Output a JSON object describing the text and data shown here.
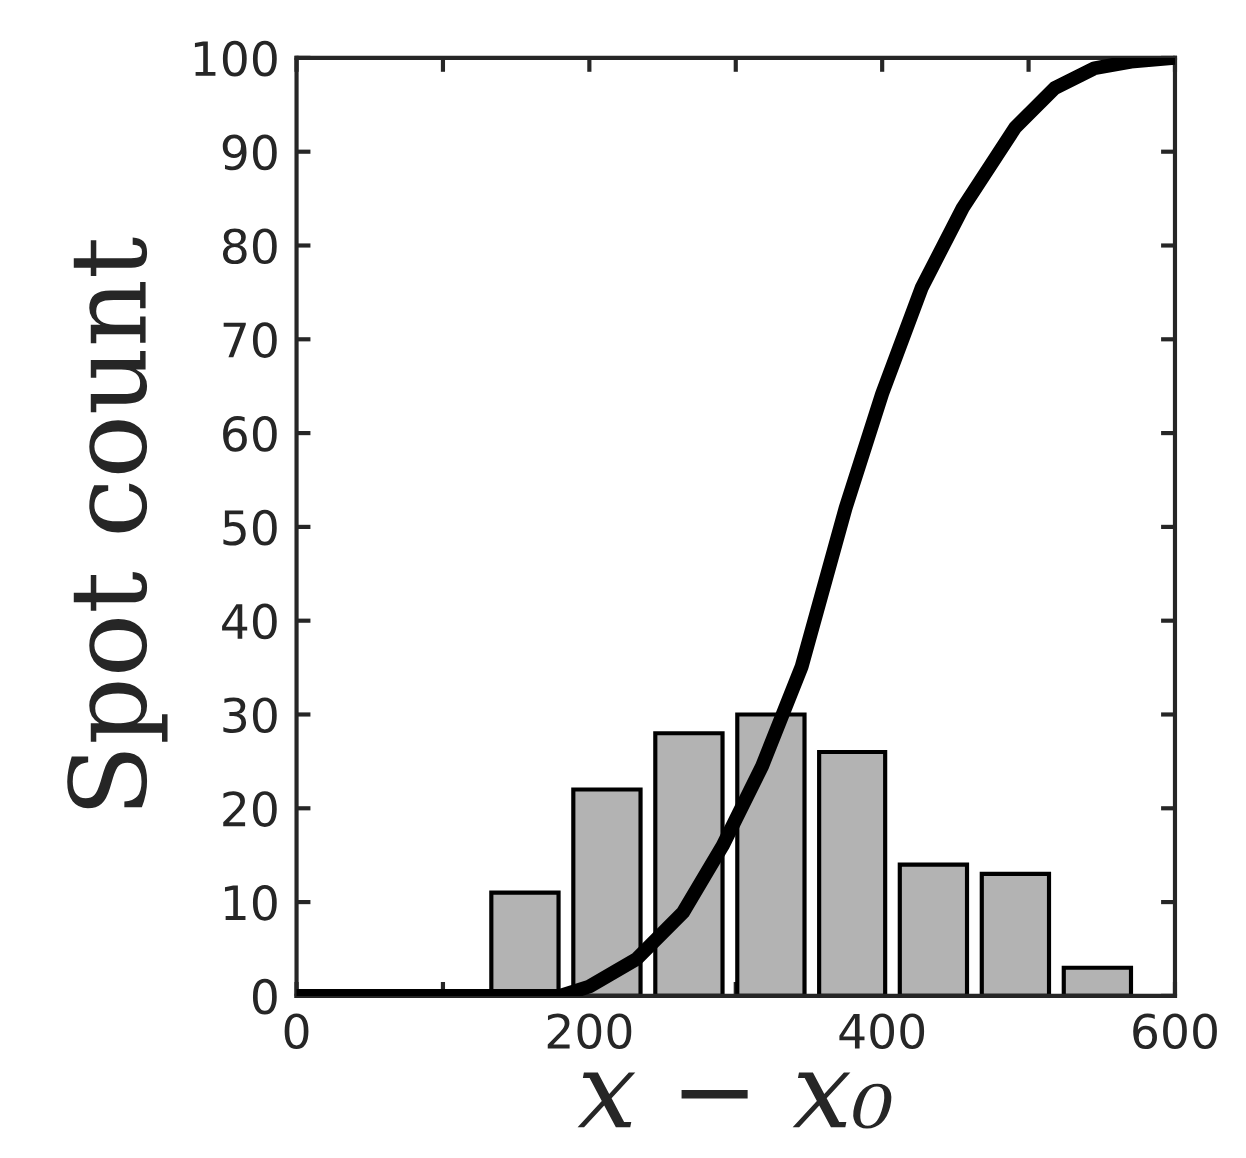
{
  "chart_data": {
    "type": "histogram",
    "xlabel": "x − x₀",
    "ylabel": "Spot count",
    "bins": [
      128,
      184,
      240,
      296,
      352,
      407,
      463,
      519,
      575
    ],
    "values": [
      11,
      22,
      28,
      30,
      26,
      14,
      13,
      3
    ],
    "color": "#b3b3b3",
    "series": [
      {
        "type": "line",
        "color": "#000000",
        "x": [
          0,
          180,
          200,
          232,
          264,
          291,
          318,
          345,
          375,
          400,
          427,
          455,
          491,
          518,
          545,
          570,
          600
        ],
        "values": [
          0,
          0,
          1,
          3.9,
          8.9,
          16,
          24.5,
          35.1,
          52,
          64.2,
          75.5,
          84,
          92.6,
          96.8,
          98.9,
          99.6,
          100
        ]
      }
    ],
    "xlim": [
      0,
      600
    ],
    "ylim": [
      0,
      100
    ],
    "xticks": [
      0,
      {
        "value": 100,
        "label": null
      },
      200,
      {
        "value": 300,
        "label": null
      },
      400,
      {
        "value": 500,
        "label": null
      },
      600
    ],
    "yticks": [
      0,
      10,
      20,
      30,
      40,
      50,
      60,
      70,
      80,
      90,
      100
    ],
    "marker": "none",
    "line_style": "solid"
  }
}
